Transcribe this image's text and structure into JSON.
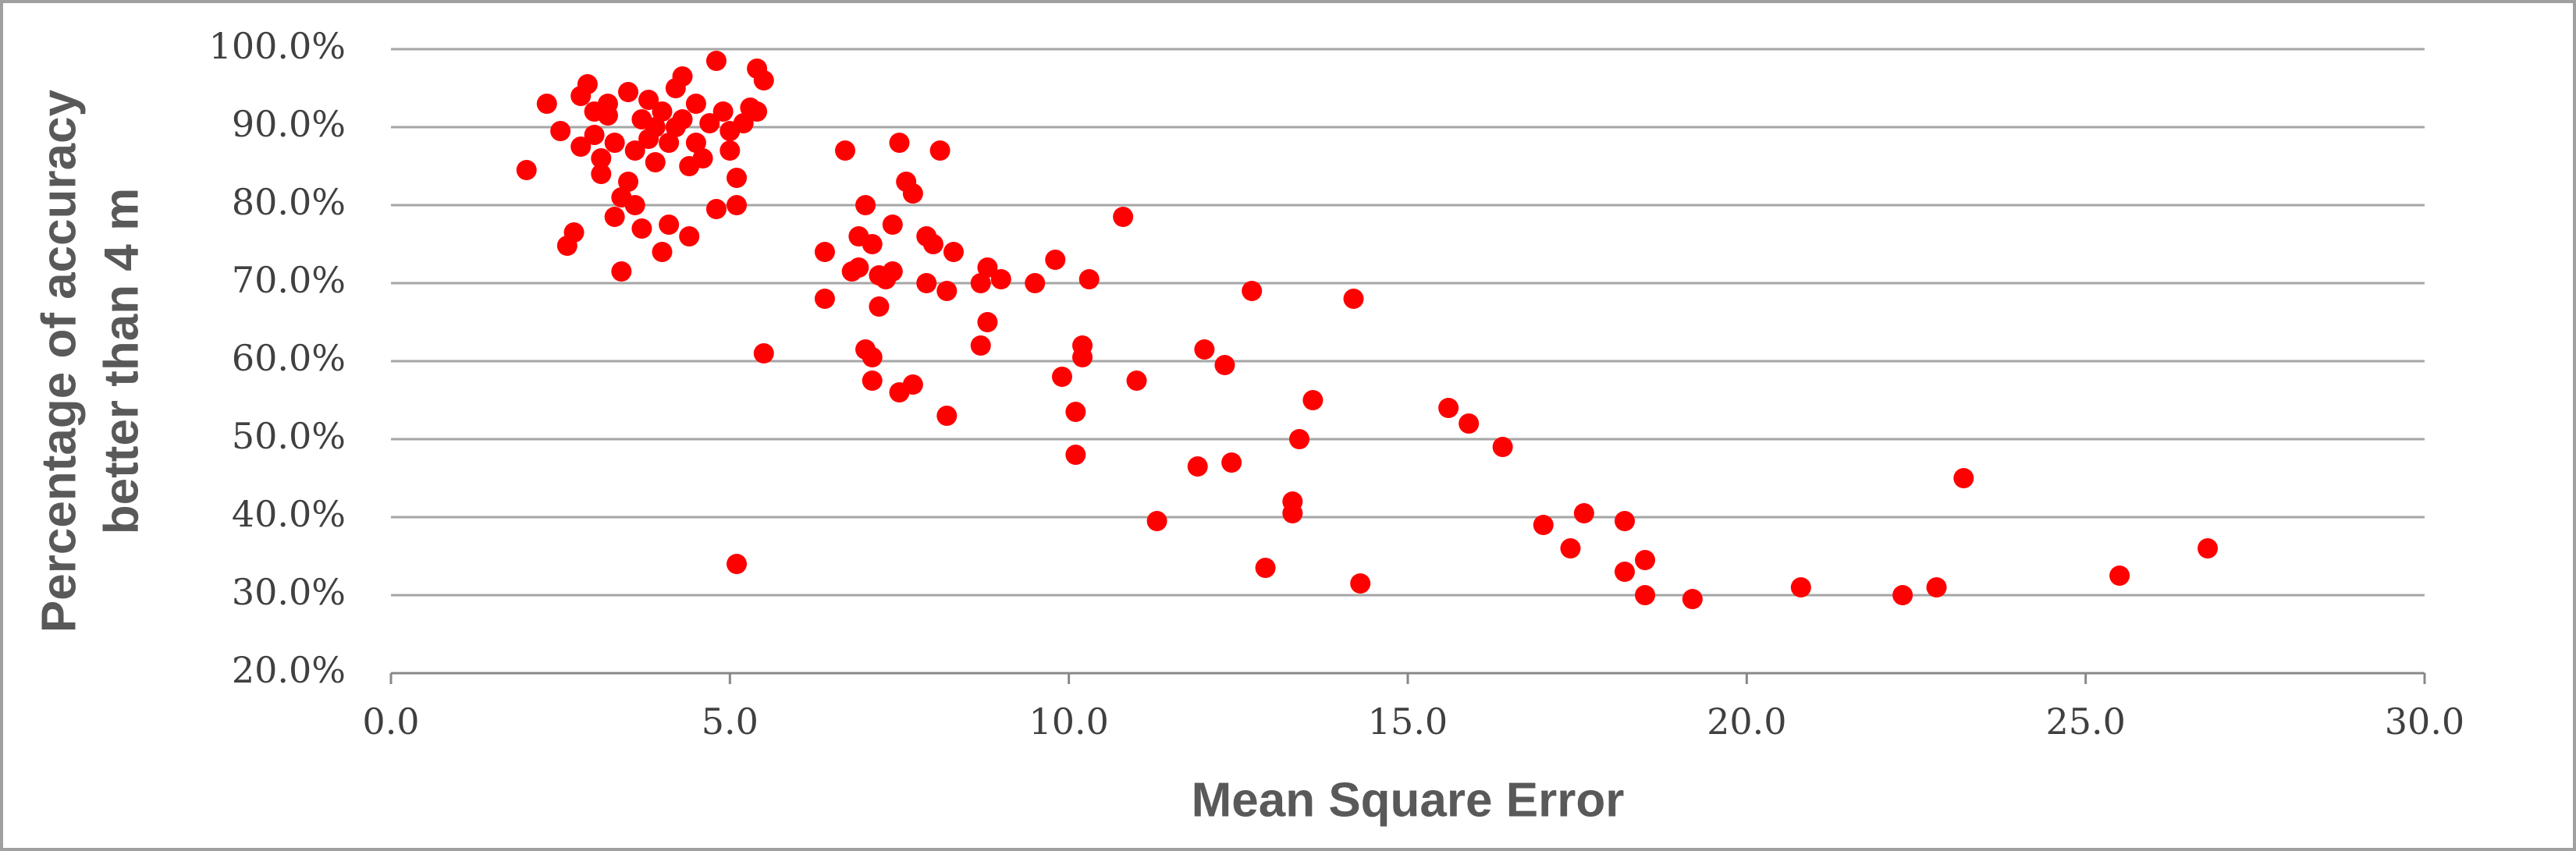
{
  "chart_data": {
    "type": "scatter",
    "x_label": "Mean Square Error",
    "y_label": [
      "Percentage of accuracy",
      "better than 4 m"
    ],
    "xlim": [
      0,
      30
    ],
    "ylim": [
      20,
      100
    ],
    "xticks": [
      {
        "value": 0,
        "label": "0.0"
      },
      {
        "value": 5,
        "label": "5.0"
      },
      {
        "value": 10,
        "label": "10.0"
      },
      {
        "value": 15,
        "label": "15.0"
      },
      {
        "value": 20,
        "label": "20.0"
      },
      {
        "value": 25,
        "label": "25.0"
      },
      {
        "value": 30,
        "label": "30.0"
      }
    ],
    "yticks": [
      {
        "value": 20,
        "label": "20.0%"
      },
      {
        "value": 30,
        "label": "30.0%"
      },
      {
        "value": 40,
        "label": "40.0%"
      },
      {
        "value": 50,
        "label": "50.0%"
      },
      {
        "value": 60,
        "label": "60.0%"
      },
      {
        "value": 70,
        "label": "70.0%"
      },
      {
        "value": 80,
        "label": "80.0%"
      },
      {
        "value": 90,
        "label": "90.0%"
      },
      {
        "value": 100,
        "label": "100.0%"
      }
    ],
    "grid": true,
    "series": [
      {
        "color": "#ff0000",
        "x": [
          2.0,
          2.3,
          2.5,
          2.6,
          2.7,
          2.8,
          2.8,
          2.9,
          3.0,
          3.0,
          3.1,
          3.1,
          3.2,
          3.2,
          3.3,
          3.3,
          3.4,
          3.4,
          3.5,
          3.5,
          3.6,
          3.6,
          3.7,
          3.7,
          3.8,
          3.8,
          3.9,
          3.9,
          4.0,
          4.0,
          4.1,
          4.1,
          4.2,
          4.2,
          4.3,
          4.3,
          4.4,
          4.4,
          4.5,
          4.5,
          4.6,
          4.7,
          4.8,
          4.8,
          4.9,
          5.0,
          5.0,
          5.1,
          5.1,
          5.2,
          5.3,
          5.4,
          5.5,
          5.4,
          5.5,
          5.1,
          6.4,
          6.4,
          6.7,
          6.8,
          6.9,
          6.9,
          7.0,
          7.0,
          7.1,
          7.1,
          7.1,
          7.2,
          7.2,
          7.3,
          7.4,
          7.4,
          7.5,
          7.5,
          7.6,
          7.7,
          7.7,
          7.9,
          7.9,
          8.0,
          8.1,
          8.2,
          8.2,
          8.3,
          8.7,
          8.7,
          8.8,
          8.8,
          9.0,
          9.5,
          9.8,
          9.9,
          10.1,
          10.1,
          10.2,
          10.2,
          10.3,
          10.8,
          11.0,
          11.3,
          11.9,
          12.0,
          12.3,
          12.4,
          12.7,
          12.9,
          13.3,
          13.3,
          13.4,
          13.6,
          14.2,
          14.3,
          15.6,
          15.9,
          16.4,
          17.0,
          17.4,
          17.6,
          18.2,
          18.2,
          18.5,
          18.5,
          19.2,
          20.8,
          22.3,
          22.8,
          23.2,
          25.5,
          26.8
        ],
        "values": [
          84.5,
          93,
          89.5,
          74.8,
          76.5,
          87.5,
          94,
          95.5,
          89,
          92,
          84,
          86,
          91.5,
          93,
          88,
          78.5,
          81,
          71.5,
          94.5,
          83,
          80,
          87,
          91,
          77,
          93.5,
          88.5,
          85.5,
          90,
          74,
          92,
          77.5,
          88,
          95,
          90,
          96.5,
          91,
          85,
          76,
          93,
          88,
          86,
          90.5,
          98.5,
          79.5,
          92,
          87,
          89.5,
          80,
          83.5,
          90.5,
          92.5,
          97.5,
          96,
          92,
          61,
          34,
          74,
          68,
          87,
          71.5,
          76,
          72,
          80,
          61.5,
          60.5,
          57.5,
          75,
          71,
          67,
          70.5,
          77.5,
          71.5,
          56,
          88,
          83,
          81.5,
          57,
          70,
          76,
          75,
          87,
          69,
          53,
          74,
          62,
          70,
          72,
          65,
          70.5,
          70,
          73,
          58,
          48,
          53.5,
          62,
          60.5,
          70.5,
          78.5,
          57.5,
          39.5,
          46.5,
          61.5,
          59.5,
          47,
          69,
          33.5,
          40.5,
          42,
          50,
          55,
          68,
          31.5,
          54,
          52,
          49,
          39,
          36,
          40.5,
          39.5,
          33,
          34.5,
          30,
          29.5,
          31,
          30,
          31,
          45,
          32.5,
          36
        ]
      }
    ]
  }
}
